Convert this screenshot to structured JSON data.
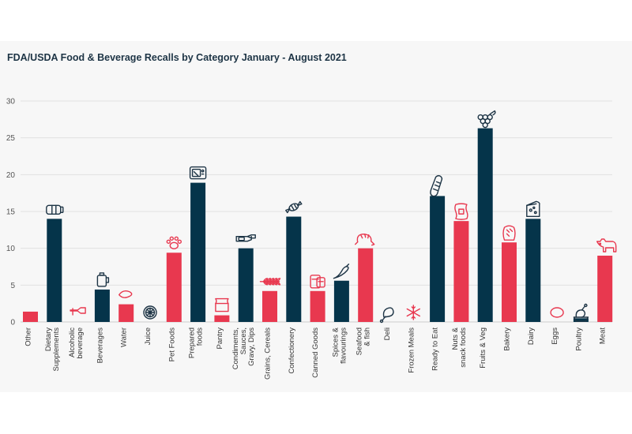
{
  "chart_data": {
    "type": "bar",
    "title": "FDA/USDA Food & Beverage Recalls by Category January - August 2021",
    "xlabel": "",
    "ylabel": "",
    "ylim": [
      0,
      30
    ],
    "yticks": [
      0,
      5,
      10,
      15,
      20,
      25,
      30
    ],
    "grid": true,
    "colors": {
      "dark": "#05344a",
      "red": "#e8384f",
      "icon_dark": "#1d3445",
      "icon_red": "#e8384f"
    },
    "categories": [
      {
        "label": [
          "Other"
        ],
        "value": 1.4,
        "color": "red",
        "icon": "none"
      },
      {
        "label": [
          "Dietary",
          "Supplements"
        ],
        "value": 14,
        "color": "dark",
        "icon": "supplement-bottle-icon"
      },
      {
        "label": [
          "Alcoholic",
          "beverage"
        ],
        "value": 0,
        "color": "red",
        "icon": "wine-bottle-icon"
      },
      {
        "label": [
          "Beverages"
        ],
        "value": 4.4,
        "color": "dark",
        "icon": "beverage-jug-icon"
      },
      {
        "label": [
          "Water"
        ],
        "value": 2.4,
        "color": "red",
        "icon": "water-drop-icon"
      },
      {
        "label": [
          "Juice"
        ],
        "value": 0,
        "color": "dark",
        "icon": "citrus-slice-icon"
      },
      {
        "label": [
          "Pet Foods"
        ],
        "value": 9.4,
        "color": "red",
        "icon": "paw-print-icon"
      },
      {
        "label": [
          "Prepared",
          "foods"
        ],
        "value": 18.9,
        "color": "dark",
        "icon": "microwave-icon"
      },
      {
        "label": [
          "Pantry"
        ],
        "value": 0.9,
        "color": "red",
        "icon": "flour-sack-icon"
      },
      {
        "label": [
          "Condiments,",
          "Sauces,",
          "Gravy, Dips"
        ],
        "value": 10,
        "color": "dark",
        "icon": "sauce-bottle-icon"
      },
      {
        "label": [
          "Grains, Cereals"
        ],
        "value": 4.2,
        "color": "red",
        "icon": "wheat-icon"
      },
      {
        "label": [
          "Confectionery"
        ],
        "value": 14.3,
        "color": "dark",
        "icon": "candy-icon"
      },
      {
        "label": [
          "Canned Goods"
        ],
        "value": 4.2,
        "color": "red",
        "icon": "canned-food-icon"
      },
      {
        "label": [
          "Spices &",
          "flavourings"
        ],
        "value": 5.6,
        "color": "dark",
        "icon": "chili-pepper-icon"
      },
      {
        "label": [
          "Seafood",
          "& fish"
        ],
        "value": 10,
        "color": "red",
        "icon": "shrimp-icon"
      },
      {
        "label": [
          "Deli"
        ],
        "value": 0,
        "color": "dark",
        "icon": "ham-leg-icon"
      },
      {
        "label": [
          "Frozen Meals"
        ],
        "value": 0,
        "color": "red",
        "icon": "snowflake-icon"
      },
      {
        "label": [
          "Ready to Eat"
        ],
        "value": 17.1,
        "color": "dark",
        "icon": "sandwich-icon"
      },
      {
        "label": [
          "Nuts &",
          "snack foods"
        ],
        "value": 13.7,
        "color": "red",
        "icon": "snack-bag-icon"
      },
      {
        "label": [
          "Fruits & Veg"
        ],
        "value": 26.3,
        "color": "dark",
        "icon": "grapes-icon"
      },
      {
        "label": [
          "Bakery"
        ],
        "value": 10.8,
        "color": "red",
        "icon": "bread-loaf-icon"
      },
      {
        "label": [
          "Dairy"
        ],
        "value": 14,
        "color": "dark",
        "icon": "cheese-icon"
      },
      {
        "label": [
          "Eggs"
        ],
        "value": 0,
        "color": "red",
        "icon": "egg-icon"
      },
      {
        "label": [
          "Poultry"
        ],
        "value": 0.5,
        "color": "dark",
        "icon": "chicken-leg-icon"
      },
      {
        "label": [
          "Meat"
        ],
        "value": 9,
        "color": "red",
        "icon": "cow-icon"
      }
    ]
  }
}
